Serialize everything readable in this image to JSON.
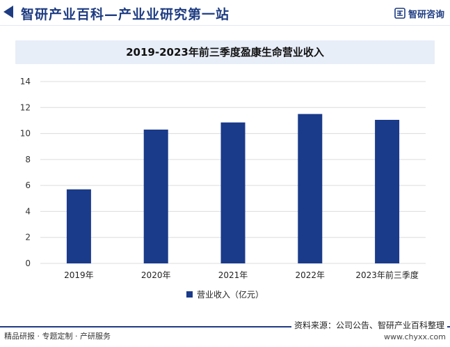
{
  "header": {
    "site_title": "智研产业百科",
    "site_title_suffix": "—产业业研究第一站",
    "brand_name": "智研咨询",
    "brand_icon": "zhiyan-logo-icon"
  },
  "chart_data": {
    "type": "bar",
    "title": "2019-2023年前三季度盈康生命营业收入",
    "categories": [
      "2019年",
      "2020年",
      "2021年",
      "2022年",
      "2023年前三季度"
    ],
    "series": [
      {
        "name": "营业收入（亿元）",
        "values": [
          5.7,
          10.3,
          10.85,
          11.5,
          11.05
        ]
      }
    ],
    "ylim": [
      0,
      14
    ],
    "yticks": [
      0,
      2,
      4,
      6,
      8,
      10,
      12,
      14
    ],
    "grid": true,
    "legend_position": "bottom",
    "bar_color": "#1a3a8a"
  },
  "footer": {
    "left_text": "精品研报 · 专题定制 · 产研服务",
    "source": "资料来源：公司公告、智研产业百科整理",
    "url": "www.chyxx.com"
  }
}
